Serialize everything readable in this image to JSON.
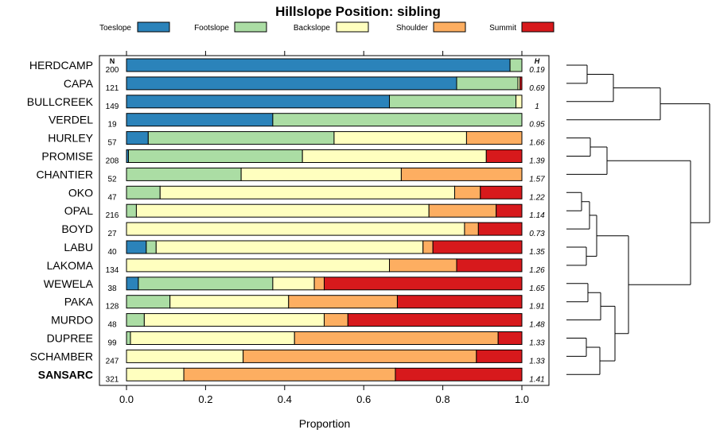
{
  "chart_data": {
    "type": "bar",
    "orientation": "horizontal",
    "stacked": true,
    "title": "Hillslope Position: sibling",
    "xlabel": "Proportion",
    "ylabel": "",
    "xlim": [
      0,
      1
    ],
    "x_ticks": [
      "0.0",
      "0.2",
      "0.4",
      "0.6",
      "0.8",
      "1.0"
    ],
    "x_tick_values": [
      0,
      0.2,
      0.4,
      0.6,
      0.8,
      1.0
    ],
    "n_header": "N",
    "h_header": "H",
    "legend": [
      {
        "name": "Toeslope",
        "color": "#2B83BA"
      },
      {
        "name": "Footslope",
        "color": "#ABDDA4"
      },
      {
        "name": "Backslope",
        "color": "#FFFFBF"
      },
      {
        "name": "Shoulder",
        "color": "#FDAE61"
      },
      {
        "name": "Summit",
        "color": "#D7191C"
      }
    ],
    "categories": [
      "HERDCAMP",
      "CAPA",
      "BULLCREEK",
      "VERDEL",
      "HURLEY",
      "PROMISE",
      "CHANTIER",
      "OKO",
      "OPAL",
      "BOYD",
      "LABU",
      "LAKOMA",
      "WEWELA",
      "PAKA",
      "MURDO",
      "DUPREE",
      "SCHAMBER",
      "SANSARC"
    ],
    "highlight": "SANSARC",
    "n": [
      "200",
      "121",
      "149",
      "19",
      "57",
      "208",
      "52",
      "47",
      "216",
      "27",
      "40",
      "134",
      "38",
      "128",
      "48",
      "99",
      "247",
      "321"
    ],
    "h": [
      "0.19",
      "0.69",
      "1",
      "0.95",
      "1.66",
      "1.39",
      "1.57",
      "1.22",
      "1.14",
      "0.73",
      "1.35",
      "1.26",
      "1.65",
      "1.91",
      "1.48",
      "1.33",
      "1.33",
      "1.41"
    ],
    "series": [
      {
        "name": "Toeslope",
        "values": [
          0.97,
          0.835,
          0.665,
          0.37,
          0.055,
          0.005,
          0,
          0,
          0,
          0,
          0.05,
          0,
          0.03,
          0,
          0,
          0,
          0,
          0
        ]
      },
      {
        "name": "Footslope",
        "values": [
          0.03,
          0.155,
          0.32,
          0.63,
          0.47,
          0.44,
          0.29,
          0.085,
          0.025,
          0,
          0.025,
          0,
          0.34,
          0.11,
          0.045,
          0.01,
          0,
          0
        ]
      },
      {
        "name": "Backslope",
        "values": [
          0,
          0.005,
          0.015,
          0,
          0.335,
          0.465,
          0.405,
          0.745,
          0.74,
          0.855,
          0.675,
          0.665,
          0.105,
          0.3,
          0.455,
          0.415,
          0.295,
          0.145
        ]
      },
      {
        "name": "Shoulder",
        "values": [
          0,
          0,
          0,
          0,
          0.14,
          0,
          0.305,
          0.065,
          0.17,
          0.035,
          0.025,
          0.17,
          0.025,
          0.275,
          0.06,
          0.515,
          0.59,
          0.535
        ]
      },
      {
        "name": "Summit",
        "values": [
          0,
          0.005,
          0,
          0,
          0,
          0.09,
          0,
          0.105,
          0.065,
          0.11,
          0.225,
          0.165,
          0.5,
          0.315,
          0.44,
          0.06,
          0.115,
          0.32
        ]
      }
    ]
  }
}
